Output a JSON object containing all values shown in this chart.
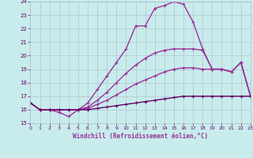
{
  "xlabel": "Windchill (Refroidissement éolien,°C)",
  "xlim": [
    0,
    23
  ],
  "ylim": [
    15,
    24
  ],
  "yticks": [
    15,
    16,
    17,
    18,
    19,
    20,
    21,
    22,
    23,
    24
  ],
  "xticks": [
    0,
    1,
    2,
    3,
    4,
    5,
    6,
    7,
    8,
    9,
    10,
    11,
    12,
    13,
    14,
    15,
    16,
    17,
    18,
    19,
    20,
    21,
    22,
    23
  ],
  "background_color": "#c8ecec",
  "grid_color": "#b0b8cc",
  "lines": [
    {
      "x": [
        0,
        1,
        2,
        3,
        4,
        5,
        6,
        7,
        8,
        9,
        10,
        11,
        12,
        13,
        14,
        15,
        16,
        17,
        18,
        19,
        20,
        21,
        22,
        23
      ],
      "y": [
        16.5,
        16.0,
        16.0,
        15.8,
        15.5,
        16.0,
        16.5,
        17.5,
        18.5,
        19.5,
        20.5,
        22.2,
        22.2,
        23.5,
        23.7,
        24.0,
        23.8,
        22.5,
        20.5,
        19.0,
        19.0,
        18.8,
        19.5,
        17.0
      ],
      "color": "#993399",
      "lw": 1.0
    },
    {
      "x": [
        0,
        1,
        2,
        3,
        4,
        5,
        6,
        7,
        8,
        9,
        10,
        11,
        12,
        13,
        14,
        15,
        16,
        17,
        18,
        19,
        20,
        21,
        22,
        23
      ],
      "y": [
        16.5,
        16.0,
        16.0,
        16.0,
        16.0,
        16.0,
        16.2,
        16.7,
        17.3,
        18.0,
        18.7,
        19.3,
        19.8,
        20.2,
        20.4,
        20.5,
        20.5,
        20.5,
        20.4,
        19.0,
        19.0,
        18.8,
        19.5,
        17.0
      ],
      "color": "#993399",
      "lw": 1.0
    },
    {
      "x": [
        0,
        1,
        2,
        3,
        4,
        5,
        6,
        7,
        8,
        9,
        10,
        11,
        12,
        13,
        14,
        15,
        16,
        17,
        18,
        19,
        20,
        21,
        22,
        23
      ],
      "y": [
        16.5,
        16.0,
        16.0,
        16.0,
        16.0,
        16.0,
        16.1,
        16.4,
        16.7,
        17.1,
        17.5,
        17.9,
        18.2,
        18.5,
        18.8,
        19.0,
        19.1,
        19.1,
        19.0,
        19.0,
        19.0,
        18.8,
        19.5,
        17.0
      ],
      "color": "#993399",
      "lw": 1.0
    },
    {
      "x": [
        0,
        1,
        2,
        3,
        4,
        5,
        6,
        7,
        8,
        9,
        10,
        11,
        12,
        13,
        14,
        15,
        16,
        17,
        18,
        19,
        20,
        21,
        22,
        23
      ],
      "y": [
        16.5,
        16.0,
        16.0,
        16.0,
        16.0,
        16.0,
        16.0,
        16.1,
        16.2,
        16.3,
        16.4,
        16.5,
        16.6,
        16.7,
        16.8,
        16.9,
        17.0,
        17.0,
        17.0,
        17.0,
        17.0,
        17.0,
        17.0,
        17.0
      ],
      "color": "#660066",
      "lw": 1.0
    }
  ]
}
